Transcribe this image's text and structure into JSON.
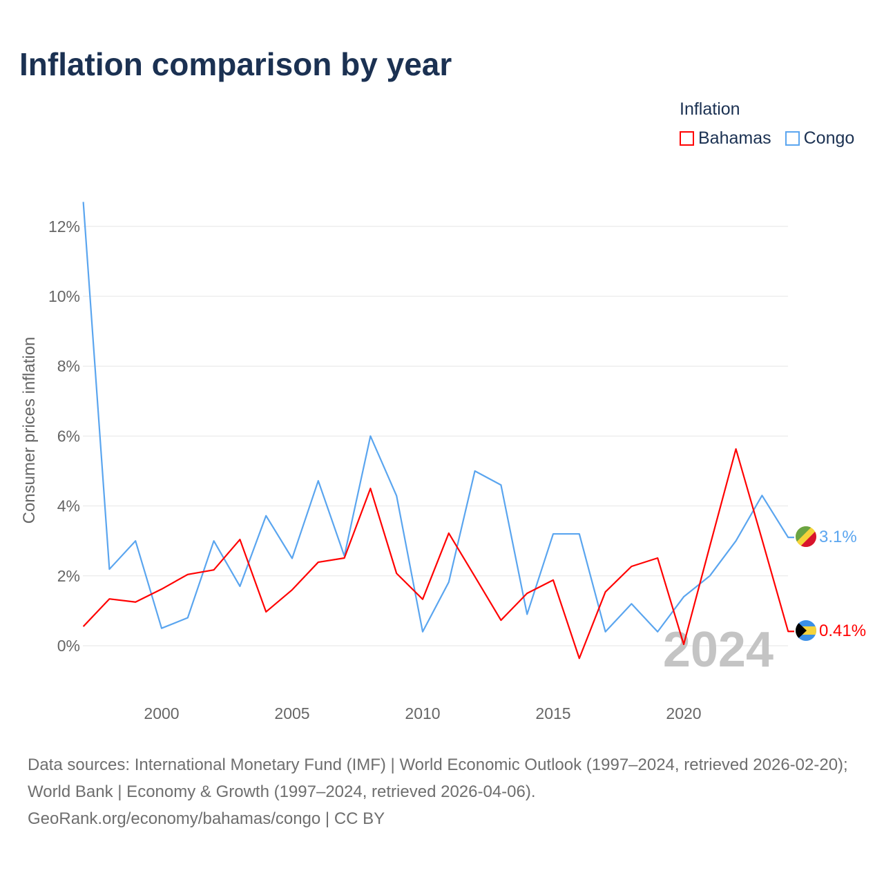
{
  "title": "Inflation comparison by year",
  "legend": {
    "title": "Inflation",
    "items": [
      {
        "label": "Bahamas",
        "color": "#ff0000"
      },
      {
        "label": "Congo",
        "color": "#5aa5ef"
      }
    ]
  },
  "watermark_year": "2024",
  "footer": {
    "sources": "Data sources: International Monetary Fund (IMF) | World Economic Outlook (1997–2024, retrieved 2026-02-20); World Bank | Economy & Growth (1997–2024, retrieved 2026-04-06).",
    "credit": "GeoRank.org/economy/bahamas/congo | CC BY"
  },
  "chart_data": {
    "type": "line",
    "title": "Inflation comparison by year",
    "ylabel": "Consumer prices inflation",
    "xlabel": "",
    "xlim": [
      1997,
      2024
    ],
    "ylim": [
      -1.5,
      12.7
    ],
    "x_ticks": [
      2000,
      2005,
      2010,
      2015,
      2020
    ],
    "x_tick_labels": [
      "2000",
      "2005",
      "2010",
      "2015",
      "2020"
    ],
    "y_ticks": [
      0,
      2,
      4,
      6,
      8,
      10,
      12
    ],
    "y_tick_labels": [
      "0%",
      "2%",
      "4%",
      "6%",
      "8%",
      "10%",
      "12%"
    ],
    "grid": true,
    "legend_position": "top-right",
    "x": [
      1997,
      1998,
      1999,
      2000,
      2001,
      2002,
      2003,
      2004,
      2005,
      2006,
      2007,
      2008,
      2009,
      2010,
      2011,
      2012,
      2013,
      2014,
      2015,
      2016,
      2017,
      2018,
      2019,
      2020,
      2021,
      2022,
      2023,
      2024
    ],
    "series": [
      {
        "name": "Bahamas",
        "color": "#ff0000",
        "end_label": "0.41%",
        "values": [
          0.55,
          1.34,
          1.25,
          1.62,
          2.04,
          2.17,
          3.04,
          0.97,
          1.6,
          2.39,
          2.51,
          4.5,
          2.07,
          1.33,
          3.22,
          1.98,
          0.73,
          1.5,
          1.88,
          -0.36,
          1.54,
          2.27,
          2.51,
          0.04,
          2.85,
          5.63,
          3.04,
          0.41
        ]
      },
      {
        "name": "Congo",
        "color": "#5aa5ef",
        "end_label": "3.1%",
        "values": [
          12.7,
          2.19,
          3.0,
          0.5,
          0.8,
          3.0,
          1.7,
          3.72,
          2.5,
          4.72,
          2.57,
          6.0,
          4.29,
          0.4,
          1.82,
          5.0,
          4.6,
          0.9,
          3.2,
          3.2,
          0.4,
          1.2,
          0.4,
          1.4,
          2.0,
          3.0,
          4.3,
          3.1
        ]
      }
    ]
  }
}
